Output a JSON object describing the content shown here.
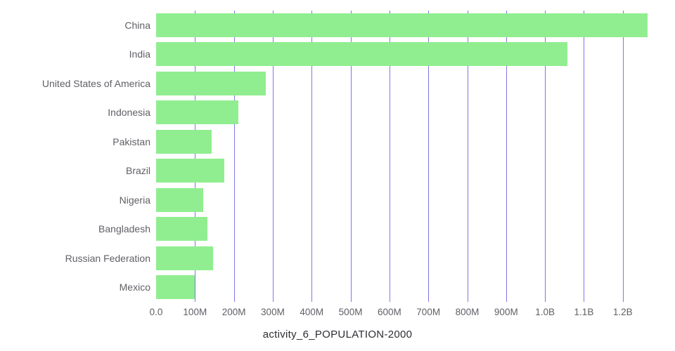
{
  "caption": "activity_6_POPULATION-2000",
  "colors": {
    "bar": "#90ee90",
    "grid": "#8176e8",
    "axis_text": "#5f5f66",
    "caption_text": "#2d2d33",
    "background": "#ffffff"
  },
  "chart_data": {
    "type": "bar",
    "orientation": "horizontal",
    "title": "activity_6_POPULATION-2000",
    "xlabel": "",
    "ylabel": "",
    "grid": "vertical",
    "legend": "none",
    "categories": [
      "China",
      "India",
      "United States of America",
      "Indonesia",
      "Pakistan",
      "Brazil",
      "Nigeria",
      "Bangladesh",
      "Russian Federation",
      "Mexico"
    ],
    "values_millions": [
      1263,
      1057,
      282,
      212,
      142,
      175,
      122,
      132,
      147,
      99
    ],
    "xlim_millions": [
      0,
      1280
    ],
    "x_ticks": [
      {
        "value": 0,
        "label": "0.0"
      },
      {
        "value": 100,
        "label": "100M"
      },
      {
        "value": 200,
        "label": "200M"
      },
      {
        "value": 300,
        "label": "300M"
      },
      {
        "value": 400,
        "label": "400M"
      },
      {
        "value": 500,
        "label": "500M"
      },
      {
        "value": 600,
        "label": "600M"
      },
      {
        "value": 700,
        "label": "700M"
      },
      {
        "value": 800,
        "label": "800M"
      },
      {
        "value": 900,
        "label": "900M"
      },
      {
        "value": 1000,
        "label": "1.0B"
      },
      {
        "value": 1100,
        "label": "1.1B"
      },
      {
        "value": 1200,
        "label": "1.2B"
      }
    ]
  }
}
